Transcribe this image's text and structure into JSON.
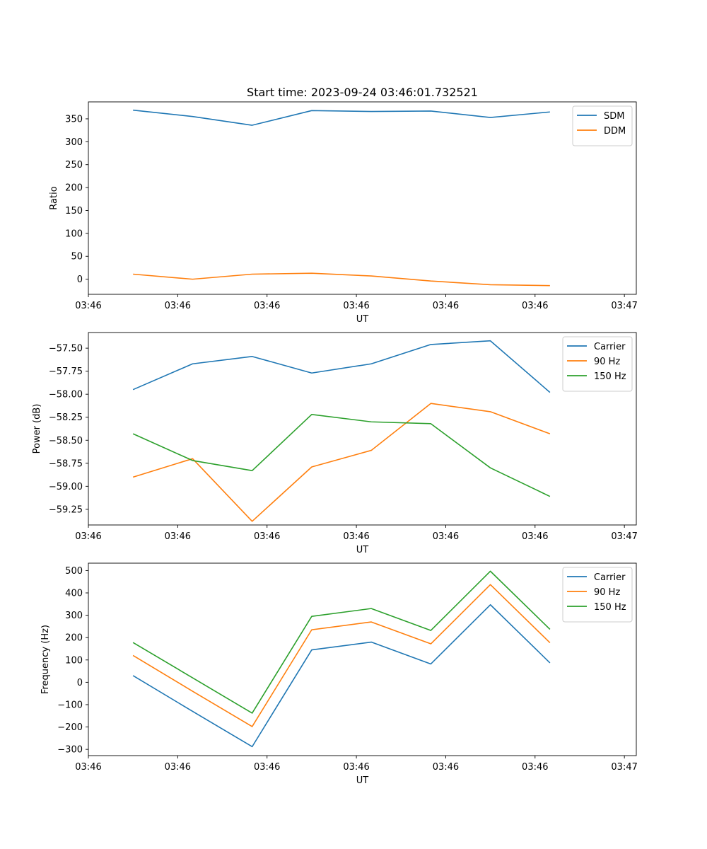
{
  "chart_data": [
    {
      "type": "line",
      "title": "Start time: 2023-09-24 03:46:01.732521",
      "xlabel": "UT",
      "ylabel": "Ratio",
      "xlim": [
        0,
        9.2
      ],
      "ylim": [
        -33,
        387
      ],
      "x": [
        0.75,
        1.75,
        2.75,
        3.75,
        4.75,
        5.75,
        6.75,
        7.75
      ],
      "xticks": [
        0,
        1.5,
        3,
        4.5,
        6,
        7.5,
        9
      ],
      "xtick_labels": [
        "03:46",
        "03:46",
        "03:46",
        "03:46",
        "03:46",
        "03:46",
        "03:47"
      ],
      "yticks": [
        0,
        50,
        100,
        150,
        200,
        250,
        300,
        350
      ],
      "ytick_labels": [
        "0",
        "50",
        "100",
        "150",
        "200",
        "250",
        "300",
        "350"
      ],
      "legend_position": "top-right",
      "series": [
        {
          "name": "SDM",
          "color": "#1f77b4",
          "values": [
            369,
            355,
            336,
            368,
            366,
            367,
            353,
            365
          ]
        },
        {
          "name": "DDM",
          "color": "#ff7f0e",
          "values": [
            11,
            0,
            11,
            13,
            7,
            -4,
            -12,
            -14
          ]
        }
      ]
    },
    {
      "type": "line",
      "title": "",
      "xlabel": "UT",
      "ylabel": "Power (dB)",
      "xlim": [
        0,
        9.2
      ],
      "ylim": [
        -59.42,
        -57.33
      ],
      "x": [
        0.75,
        1.75,
        2.75,
        3.75,
        4.75,
        5.75,
        6.75,
        7.75
      ],
      "xticks": [
        0,
        1.5,
        3,
        4.5,
        6,
        7.5,
        9
      ],
      "xtick_labels": [
        "03:46",
        "03:46",
        "03:46",
        "03:46",
        "03:46",
        "03:46",
        "03:47"
      ],
      "yticks": [
        -57.5,
        -57.75,
        -58.0,
        -58.25,
        -58.5,
        -58.75,
        -59.0,
        -59.25
      ],
      "ytick_labels": [
        "−57.50",
        "−57.75",
        "−58.00",
        "−58.25",
        "−58.50",
        "−58.75",
        "−59.00",
        "−59.25"
      ],
      "legend_position": "top-right",
      "series": [
        {
          "name": "Carrier",
          "color": "#1f77b4",
          "values": [
            -57.95,
            -57.67,
            -57.59,
            -57.77,
            -57.67,
            -57.46,
            -57.42,
            -57.98
          ]
        },
        {
          "name": "90 Hz",
          "color": "#ff7f0e",
          "values": [
            -58.9,
            -58.7,
            -59.38,
            -58.79,
            -58.61,
            -58.1,
            -58.19,
            -58.43
          ]
        },
        {
          "name": "150 Hz",
          "color": "#2ca02c",
          "values": [
            -58.43,
            -58.72,
            -58.83,
            -58.22,
            -58.3,
            -58.32,
            -58.8,
            -59.11
          ]
        }
      ]
    },
    {
      "type": "line",
      "title": "",
      "xlabel": "UT",
      "ylabel": "Frequency (Hz)",
      "xlim": [
        0,
        9.2
      ],
      "ylim": [
        -328,
        533
      ],
      "x": [
        0.75,
        1.75,
        2.75,
        3.75,
        4.75,
        5.75,
        6.75,
        7.75
      ],
      "xticks": [
        0,
        1.5,
        3,
        4.5,
        6,
        7.5,
        9
      ],
      "xtick_labels": [
        "03:46",
        "03:46",
        "03:46",
        "03:46",
        "03:46",
        "03:46",
        "03:47"
      ],
      "yticks": [
        -300,
        -200,
        -100,
        0,
        100,
        200,
        300,
        400,
        500
      ],
      "ytick_labels": [
        "−300",
        "−200",
        "−100",
        "0",
        "100",
        "200",
        "300",
        "400",
        "500"
      ],
      "legend_position": "top-right",
      "series": [
        {
          "name": "Carrier",
          "color": "#1f77b4",
          "values": [
            30,
            -130,
            -288,
            145,
            180,
            82,
            347,
            87
          ]
        },
        {
          "name": "90 Hz",
          "color": "#ff7f0e",
          "values": [
            120,
            -40,
            -198,
            235,
            270,
            172,
            437,
            177
          ]
        },
        {
          "name": "150 Hz",
          "color": "#2ca02c",
          "values": [
            178,
            20,
            -138,
            295,
            330,
            232,
            497,
            237
          ]
        }
      ]
    }
  ]
}
